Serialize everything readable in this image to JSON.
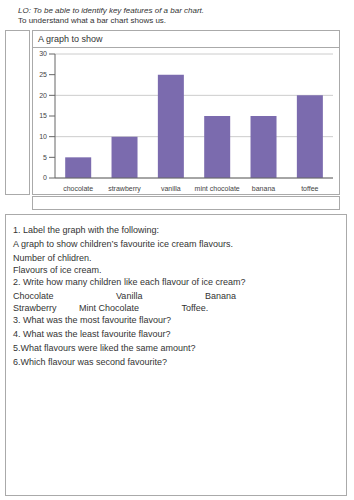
{
  "chart_data": {
    "type": "bar",
    "title": "A graph to show",
    "categories": [
      "chocolate",
      "strawberry",
      "vanilla",
      "mint chocolate",
      "banana",
      "toffee"
    ],
    "values": [
      5,
      10,
      25,
      15,
      15,
      20
    ],
    "color": "#7B6BAE",
    "ylim": [
      0,
      30
    ],
    "yticks": [
      0,
      5,
      10,
      15,
      20,
      25,
      30
    ],
    "grid": true,
    "annotations": [
      "LO: To be able to identify key features of a bar chart.",
      "To understand what a bar chart shows us.",
      "1. Label the graph with the following:",
      "A graph to show children’s favourite ice cream flavours.",
      "Number of chlidren.",
      "Flavours of ice cream.",
      "2. Write how many children like each flavour of ice cream?",
      "Chocolate                         Vanilla                         Banana",
      "Strawberry         Mint Chocolate                 Toffee.",
      "3. What was the most favourite flavour?",
      "4. What was the least favourite flavour?",
      "5.What flavours were liked the same amount?",
      "6.Which flavour was second favourite?"
    ]
  }
}
